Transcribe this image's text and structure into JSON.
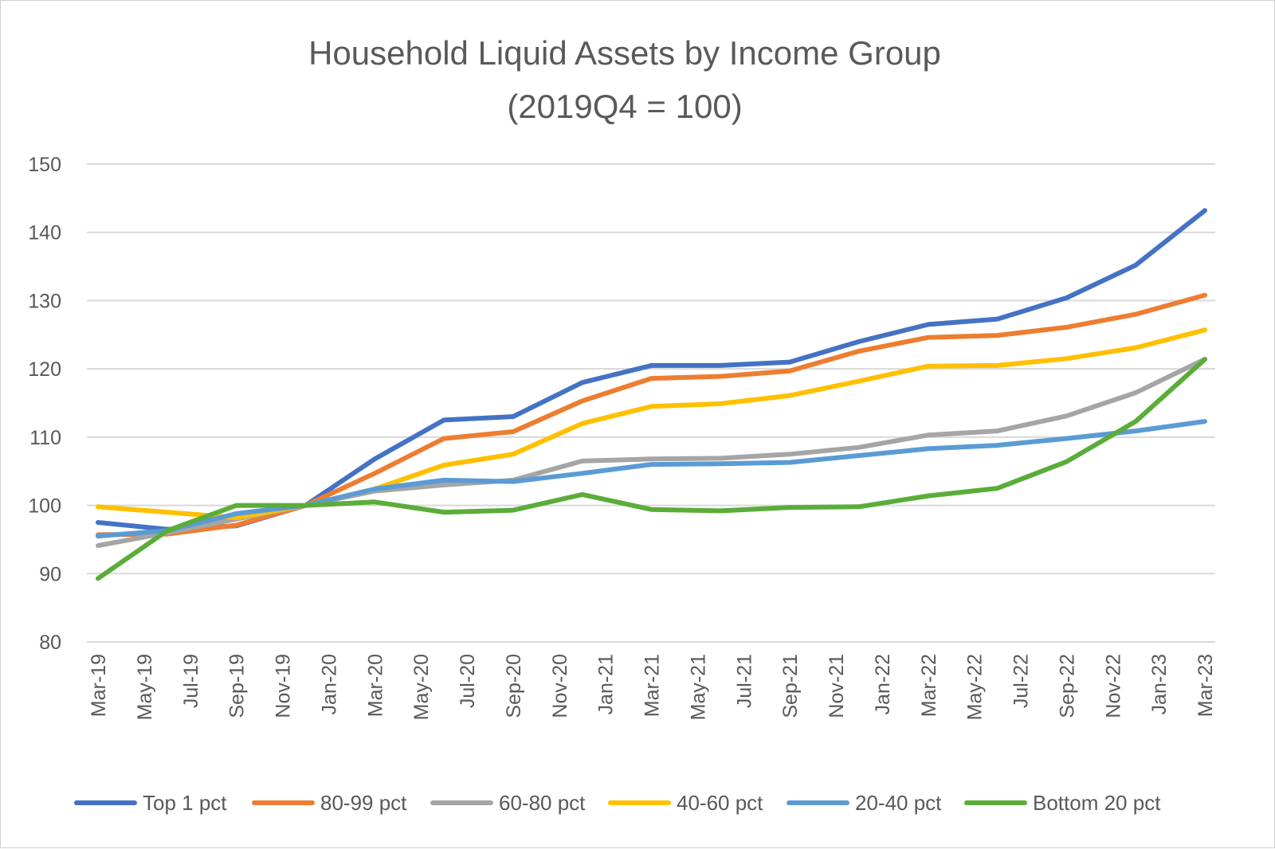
{
  "chart_data": {
    "type": "line",
    "title": [
      "Household Liquid Assets by Income Group",
      "(2019Q4 = 100)"
    ],
    "xlabel": "",
    "ylabel": "",
    "ylim": [
      80,
      150
    ],
    "yticks": [
      80,
      90,
      100,
      110,
      120,
      130,
      140,
      150
    ],
    "grid": true,
    "legend_position": "bottom",
    "x_tick_labels": [
      "Mar-19",
      "May-19",
      "Jul-19",
      "Sep-19",
      "Nov-19",
      "Jan-20",
      "Mar-20",
      "May-20",
      "Jul-20",
      "Sep-20",
      "Nov-20",
      "Jan-21",
      "Mar-21",
      "May-21",
      "Jul-21",
      "Sep-21",
      "Nov-21",
      "Jan-22",
      "Mar-22",
      "May-22",
      "Jul-22",
      "Sep-22",
      "Nov-22",
      "Jan-23",
      "Mar-23"
    ],
    "x": [
      "2019Q1",
      "2019Q2",
      "2019Q3",
      "2019Q4",
      "2020Q1",
      "2020Q2",
      "2020Q3",
      "2020Q4",
      "2021Q1",
      "2021Q2",
      "2021Q3",
      "2021Q4",
      "2022Q1",
      "2022Q2",
      "2022Q3",
      "2022Q4",
      "2023Q1"
    ],
    "series": [
      {
        "name": "Top 1 pct",
        "color": "#4472c4",
        "values": [
          97.5,
          96.5,
          97.0,
          100.0,
          106.8,
          112.5,
          113.0,
          118.0,
          120.5,
          120.5,
          121.0,
          124.0,
          126.5,
          127.3,
          130.4,
          135.2,
          143.2
        ]
      },
      {
        "name": "80-99 pct",
        "color": "#ed7d31",
        "values": [
          95.7,
          95.8,
          97.1,
          100.0,
          104.7,
          109.8,
          110.8,
          115.3,
          118.6,
          118.9,
          119.7,
          122.6,
          124.6,
          124.9,
          126.1,
          128.0,
          130.8
        ]
      },
      {
        "name": "60-80 pct",
        "color": "#a5a5a5",
        "values": [
          94.1,
          96.0,
          98.0,
          100.0,
          102.1,
          103.0,
          103.7,
          106.5,
          106.8,
          106.9,
          107.5,
          108.5,
          110.3,
          110.9,
          113.1,
          116.5,
          121.4
        ]
      },
      {
        "name": "40-60 pct",
        "color": "#ffc000",
        "values": [
          99.8,
          99.0,
          98.2,
          100.0,
          102.4,
          105.9,
          107.5,
          112.0,
          114.5,
          114.9,
          116.1,
          118.2,
          120.4,
          120.5,
          121.5,
          123.1,
          125.7
        ]
      },
      {
        "name": "20-40 pct",
        "color": "#5b9bd5",
        "values": [
          95.5,
          96.3,
          98.8,
          100.0,
          102.4,
          103.7,
          103.5,
          104.7,
          106.0,
          106.1,
          106.3,
          107.3,
          108.3,
          108.8,
          109.8,
          110.9,
          112.3
        ]
      },
      {
        "name": "Bottom 20 pct",
        "color": "#5aad39",
        "values": [
          89.3,
          96.3,
          100.0,
          100.0,
          100.5,
          99.0,
          99.3,
          101.6,
          99.4,
          99.2,
          99.7,
          99.8,
          101.4,
          102.5,
          106.4,
          112.3,
          121.4
        ]
      }
    ]
  }
}
